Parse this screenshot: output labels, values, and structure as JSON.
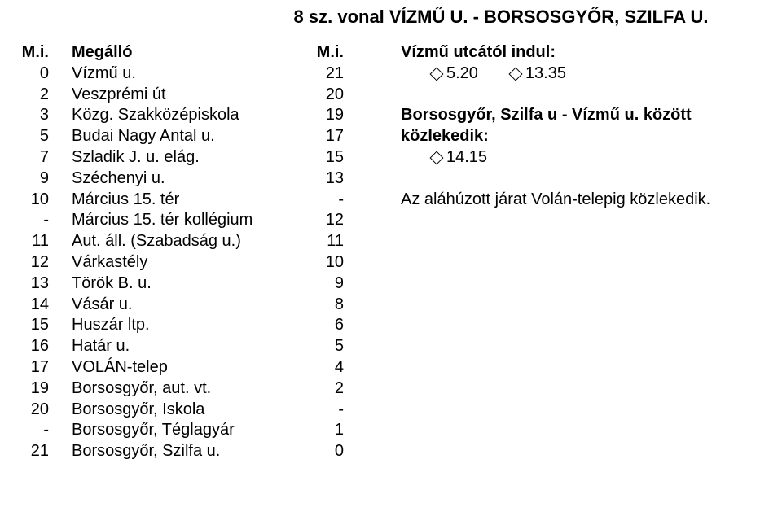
{
  "title": "8 sz. vonal  VÍZMŰ U. - BORSOSGYŐR, SZILFA U.",
  "columns": {
    "mi_header": "M.i.",
    "stop_header": "Megálló",
    "rev_header": "M.i."
  },
  "stops": [
    {
      "mi": "0",
      "name": "Vízmű u.",
      "rev": "21"
    },
    {
      "mi": "2",
      "name": "Veszprémi út",
      "rev": "20"
    },
    {
      "mi": "3",
      "name": "Közg. Szakközépiskola",
      "rev": "19"
    },
    {
      "mi": "5",
      "name": "Budai Nagy Antal u.",
      "rev": "17"
    },
    {
      "mi": "7",
      "name": "Szladik J. u. elág.",
      "rev": "15"
    },
    {
      "mi": "9",
      "name": "Széchenyi u.",
      "rev": "13"
    },
    {
      "mi": "10",
      "name": "Március 15. tér",
      "rev": "-"
    },
    {
      "mi": "-",
      "name": "Március 15. tér kollégium",
      "rev": "12"
    },
    {
      "mi": "11",
      "name": "Aut. áll. (Szabadság u.)",
      "rev": "11"
    },
    {
      "mi": "12",
      "name": "Várkastély",
      "rev": "10"
    },
    {
      "mi": "13",
      "name": "Török B. u.",
      "rev": "9"
    },
    {
      "mi": "14",
      "name": "Vásár u.",
      "rev": "8"
    },
    {
      "mi": "15",
      "name": "Huszár ltp.",
      "rev": "6"
    },
    {
      "mi": "16",
      "name": "Határ u.",
      "rev": "5"
    },
    {
      "mi": "17",
      "name": "VOLÁN-telep",
      "rev": "4"
    },
    {
      "mi": "19",
      "name": "Borsosgyőr, aut. vt.",
      "rev": "2"
    },
    {
      "mi": "20",
      "name": "Borsosgyőr, Iskola",
      "rev": "-"
    },
    {
      "mi": "-",
      "name": "Borsosgyőr, Téglagyár",
      "rev": "1"
    },
    {
      "mi": "21",
      "name": "Borsosgyőr, Szilfa u.",
      "rev": "0"
    }
  ],
  "right": {
    "from_header": "Vízmű utcától indul:",
    "from_times": [
      "5.20",
      "13.35"
    ],
    "return_header": "Borsosgyőr, Szilfa u - Vízmű u. között közlekedik:",
    "return_times": [
      "14.15"
    ],
    "note": "Az aláhúzott járat Volán-telepig közlekedik."
  }
}
